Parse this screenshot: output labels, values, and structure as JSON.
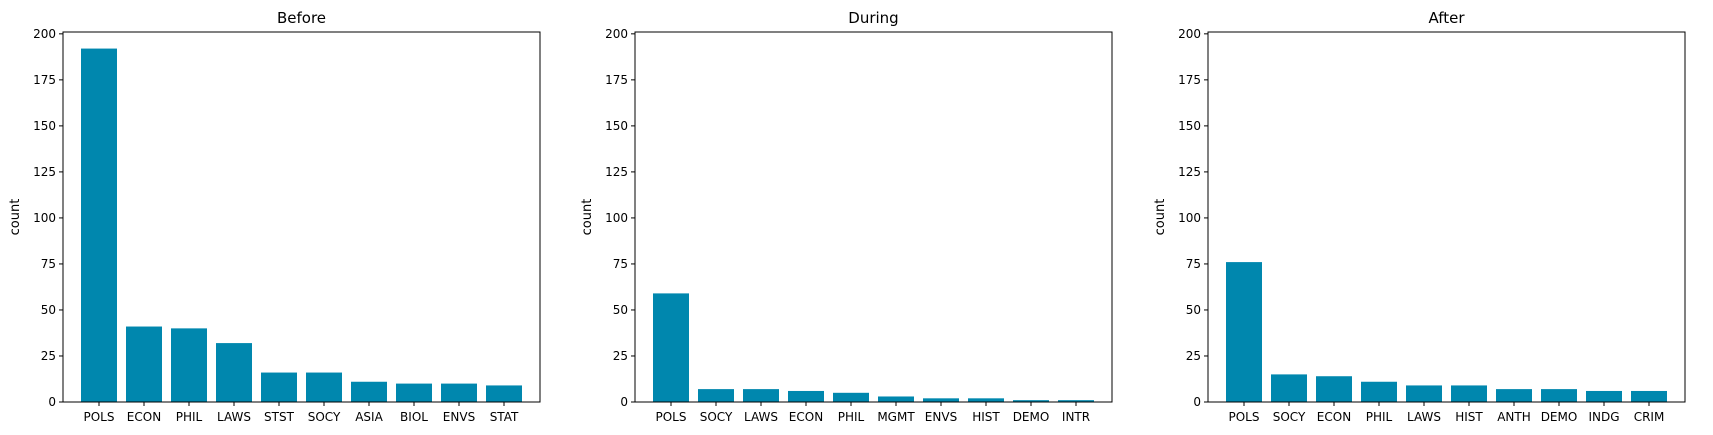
{
  "chart_data": [
    {
      "type": "bar",
      "title": "Before",
      "xlabel": "",
      "ylabel": "count",
      "ylim": [
        0,
        201
      ],
      "yticks": [
        0,
        25,
        50,
        75,
        100,
        125,
        150,
        175,
        200
      ],
      "categories": [
        "POLS",
        "ECON",
        "PHIL",
        "LAWS",
        "STST",
        "SOCY",
        "ASIA",
        "BIOL",
        "ENVS",
        "STAT"
      ],
      "values": [
        192,
        41,
        40,
        32,
        16,
        16,
        11,
        10,
        10,
        9
      ]
    },
    {
      "type": "bar",
      "title": "During",
      "xlabel": "",
      "ylabel": "count",
      "ylim": [
        0,
        201
      ],
      "yticks": [
        0,
        25,
        50,
        75,
        100,
        125,
        150,
        175,
        200
      ],
      "categories": [
        "POLS",
        "SOCY",
        "LAWS",
        "ECON",
        "PHIL",
        "MGMT",
        "ENVS",
        "HIST",
        "DEMO",
        "INTR"
      ],
      "values": [
        59,
        7,
        7,
        6,
        5,
        3,
        2,
        2,
        1,
        1
      ]
    },
    {
      "type": "bar",
      "title": "After",
      "xlabel": "",
      "ylabel": "count",
      "ylim": [
        0,
        201
      ],
      "yticks": [
        0,
        25,
        50,
        75,
        100,
        125,
        150,
        175,
        200
      ],
      "categories": [
        "POLS",
        "SOCY",
        "ECON",
        "PHIL",
        "LAWS",
        "HIST",
        "ANTH",
        "DEMO",
        "INDG",
        "CRIM"
      ],
      "values": [
        76,
        15,
        14,
        11,
        9,
        9,
        7,
        7,
        6,
        6
      ]
    }
  ],
  "colors": {
    "bar": "#0087ae",
    "axis": "#000000",
    "background": "#ffffff"
  }
}
